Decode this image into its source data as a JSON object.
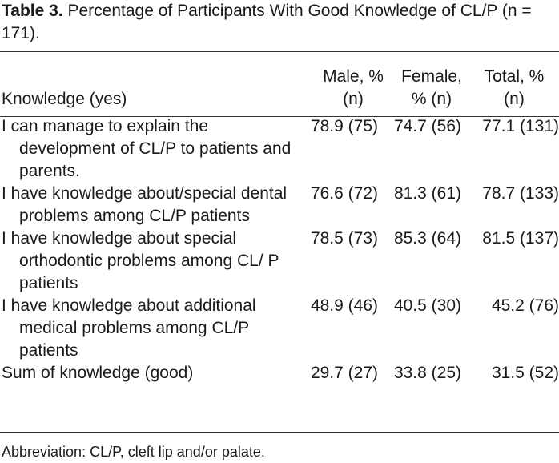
{
  "caption": {
    "label": "Table 3.",
    "text": " Percentage of Participants With Good Knowledge of CL/P (n = 171)."
  },
  "table": {
    "headers": [
      "Knowledge (yes)",
      "Male, % (n)",
      "Female, % (n)",
      "Total, % (n)"
    ],
    "rows": [
      {
        "knowledge": "I can manage to explain the development of CL/P to patients and parents.",
        "male": "78.9 (75)",
        "female": "74.7 (56)",
        "total": "77.1 (131)"
      },
      {
        "knowledge": "I have knowledge about/special dental problems among CL/P patients",
        "male": "76.6 (72)",
        "female": "81.3 (61)",
        "total": "78.7 (133)"
      },
      {
        "knowledge": "I have knowledge about special orthodontic problems among CL/ P patients",
        "male": "78.5 (73)",
        "female": "85.3 (64)",
        "total": "81.5 (137)"
      },
      {
        "knowledge": "I have knowledge about additional medical problems among CL/P patients",
        "male": "48.9 (46)",
        "female": "40.5 (30)",
        "total": "45.2 (76)"
      },
      {
        "knowledge": "Sum of knowledge (good)",
        "male": "29.7 (27)",
        "female": "33.8 (25)",
        "total": "31.5 (52)"
      }
    ]
  },
  "footnote": "Abbreviation: CL/P, cleft lip and/or palate."
}
